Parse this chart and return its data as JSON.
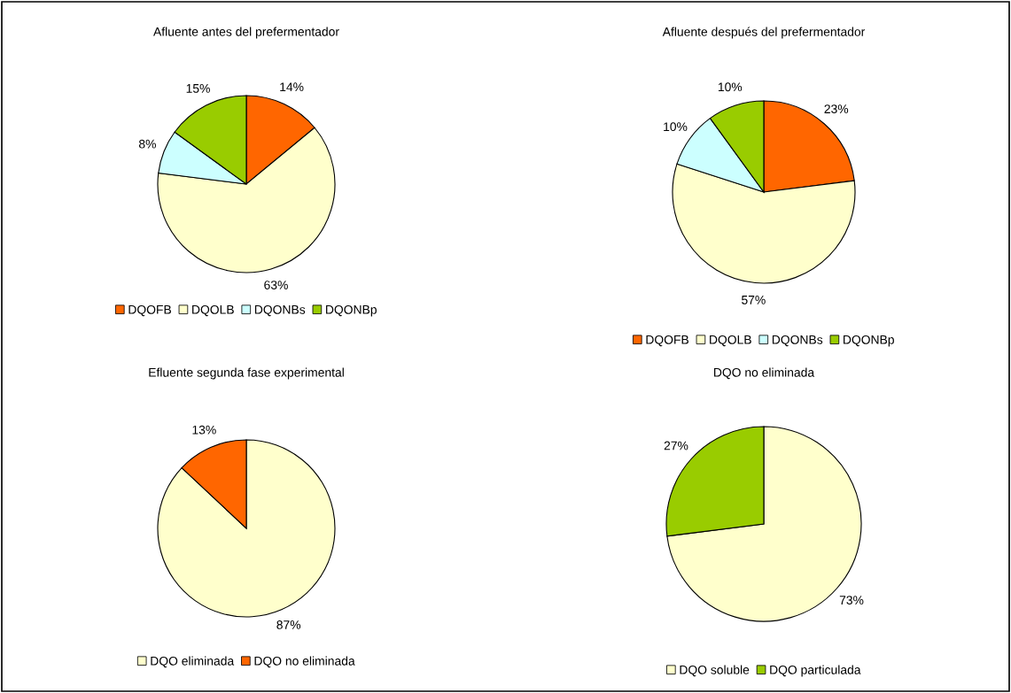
{
  "chart_data": [
    {
      "type": "pie",
      "title": "Afluente antes del prefermentador",
      "categories": [
        "DQOFB",
        "DQOLB",
        "DQONBs",
        "DQONBp"
      ],
      "values": [
        14,
        63,
        8,
        15
      ],
      "value_labels": [
        "14%",
        "63%",
        "8%",
        "15%"
      ],
      "colors": [
        "#ff6600",
        "#ffffcc",
        "#ccffff",
        "#99cc00"
      ],
      "legend": "bottom"
    },
    {
      "type": "pie",
      "title": "Afluente después del prefermentador",
      "categories": [
        "DQOFB",
        "DQOLB",
        "DQONBs",
        "DQONBp"
      ],
      "values": [
        23,
        57,
        10,
        10
      ],
      "value_labels": [
        "23%",
        "57%",
        "10%",
        "10%"
      ],
      "colors": [
        "#ff6600",
        "#ffffcc",
        "#ccffff",
        "#99cc00"
      ],
      "legend": "bottom"
    },
    {
      "type": "pie",
      "title": "Efluente segunda fase experimental",
      "categories": [
        "DQO eliminada",
        "DQO no eliminada"
      ],
      "values": [
        87,
        13
      ],
      "value_labels": [
        "87%",
        "13%"
      ],
      "colors": [
        "#ffffcc",
        "#ff6600"
      ],
      "legend": "bottom"
    },
    {
      "type": "pie",
      "title": "DQO no eliminada",
      "categories": [
        "DQO soluble",
        "DQO particulada"
      ],
      "values": [
        73,
        27
      ],
      "value_labels": [
        "73%",
        "27%"
      ],
      "colors": [
        "#ffffcc",
        "#99cc00"
      ],
      "legend": "bottom"
    }
  ]
}
